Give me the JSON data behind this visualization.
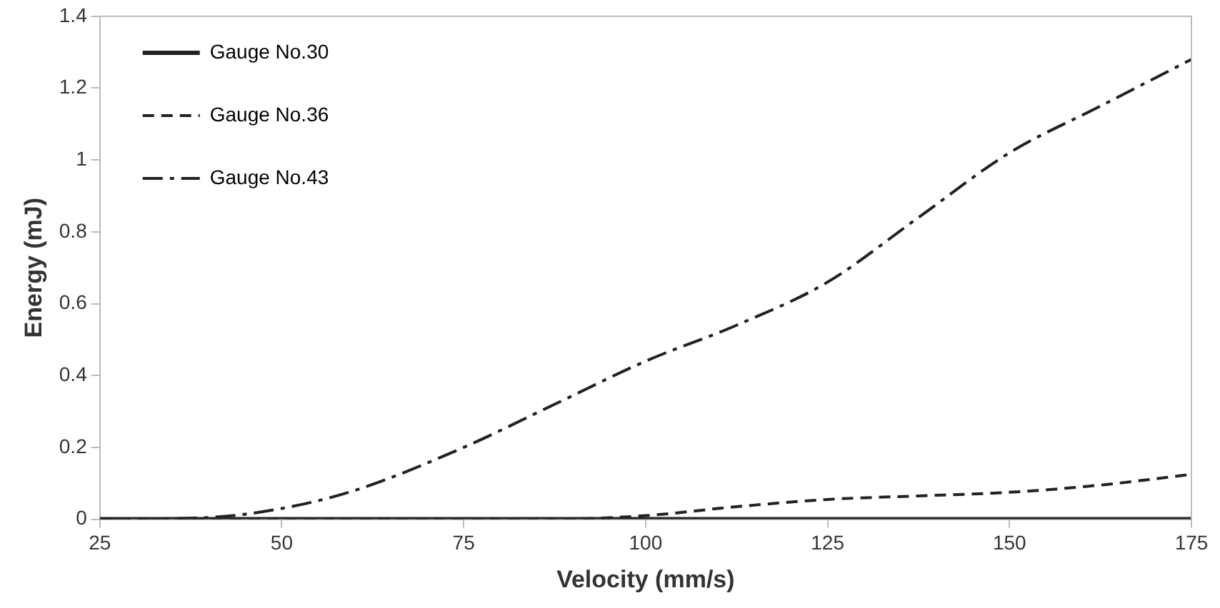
{
  "chart_data": {
    "type": "line",
    "xlabel": "Velocity (mm/s)",
    "ylabel": "Energy (mJ)",
    "x": [
      25,
      40,
      50,
      60,
      75,
      87.5,
      100,
      112.5,
      125,
      137.5,
      150,
      162.5,
      175
    ],
    "xlim": [
      25,
      175
    ],
    "xticks": [
      25,
      50,
      75,
      100,
      125,
      150,
      175
    ],
    "ylim": [
      0,
      1.4
    ],
    "yticks": [
      0,
      {
        "value": 0.2,
        "label": "0.2"
      },
      {
        "value": 0.4,
        "label": "0.4"
      },
      {
        "value": 0.6,
        "label": "0.6"
      },
      {
        "value": 0.8,
        "label": "0.8"
      },
      1,
      {
        "value": 1.2,
        "label": "1.2"
      },
      {
        "value": 1.4,
        "label": "1.4"
      }
    ],
    "series": [
      {
        "name": "Gauge No.30",
        "color": "#222222",
        "line_style": "solid",
        "values": [
          0,
          0,
          0,
          0,
          0,
          0,
          0,
          0,
          0,
          0,
          0,
          0,
          0
        ]
      },
      {
        "name": "Gauge No.36",
        "color": "#222222",
        "line_style": "dashed",
        "values": [
          0,
          0,
          0,
          0,
          0,
          0,
          0.01,
          0.035,
          0.055,
          0.065,
          0.075,
          0.095,
          0.125
        ]
      },
      {
        "name": "Gauge No.43",
        "color": "#222222",
        "line_style": "dashdot",
        "values": [
          0,
          0.005,
          0.03,
          0.08,
          0.2,
          0.32,
          0.44,
          0.54,
          0.66,
          0.84,
          1.02,
          1.15,
          1.28
        ]
      }
    ],
    "grid": false,
    "legend": "top left",
    "marker": "none"
  }
}
